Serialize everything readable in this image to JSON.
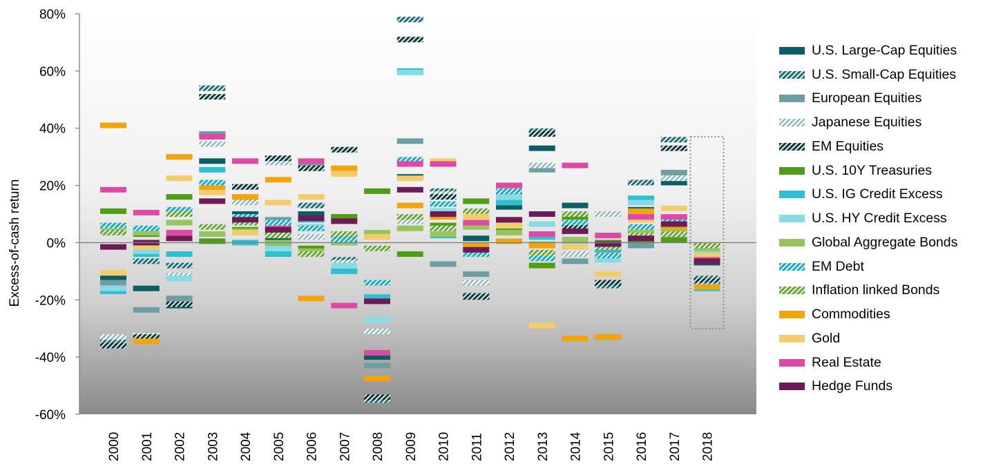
{
  "chart_data": {
    "type": "bar",
    "subtype": "floating-range-markers",
    "ylabel": "Excess-of-cash return",
    "xlabel": "",
    "ylim": [
      -60,
      80
    ],
    "yticks": [
      -60,
      -40,
      -20,
      0,
      20,
      40,
      60,
      80
    ],
    "ytick_labels": [
      "-60%",
      "-40%",
      "-20%",
      "0%",
      "20%",
      "40%",
      "60%",
      "80%"
    ],
    "categories": [
      "2000",
      "2001",
      "2002",
      "2003",
      "2004",
      "2005",
      "2006",
      "2007",
      "2008",
      "2009",
      "2010",
      "2011",
      "2012",
      "2013",
      "2014",
      "2015",
      "2016",
      "2017",
      "2018"
    ],
    "legend_position": "right",
    "highlight": {
      "category": "2018",
      "range": [
        -30,
        37
      ],
      "style": "dotted-box"
    },
    "series": [
      {
        "name": "U.S. Large-Cap Equities",
        "color": "#0b5e63",
        "pattern": "solid",
        "values": [
          -12.5,
          -16,
          -22,
          28.5,
          10,
          1,
          10,
          2.5,
          -40,
          23,
          11,
          1.5,
          12.5,
          33,
          13,
          -1,
          11.5,
          21,
          -7
        ]
      },
      {
        "name": "U.S. Small-Cap Equities",
        "color": "#1f7079",
        "pattern": "hatch",
        "values": [
          -35,
          -6.5,
          -8,
          54,
          15,
          3,
          13,
          -6,
          -55,
          78,
          18,
          -18.5,
          16,
          39,
          4,
          -15,
          21,
          36,
          -12.5
        ]
      },
      {
        "name": "European Equities",
        "color": "#6d9ea3",
        "pattern": "solid",
        "values": [
          -14,
          -23.5,
          -19.5,
          38,
          19.5,
          8,
          27.5,
          9,
          -43,
          35.5,
          -7.5,
          -11,
          16,
          25.5,
          -6.5,
          -2.5,
          -1,
          24.5,
          -14.5
        ]
      },
      {
        "name": "Japanese Equities",
        "color": "#8fb8bc",
        "pattern": "hatch-light",
        "values": [
          -33,
          -32.5,
          -11.5,
          34.5,
          14,
          28,
          2,
          -7,
          -31,
          7.5,
          17,
          -14,
          15,
          27,
          -4,
          10,
          8.5,
          22.5,
          -14
        ]
      },
      {
        "name": "EM Equities",
        "color": "#12393c",
        "pattern": "hatch",
        "values": [
          -36,
          -33,
          -21.5,
          51,
          19.5,
          29.5,
          26,
          32.5,
          -54,
          71,
          16,
          -19,
          17,
          38,
          5.5,
          -14,
          9,
          33,
          -13.5
        ]
      },
      {
        "name": "U.S. 10Y Treasuries",
        "color": "#4f9c16",
        "pattern": "solid",
        "values": [
          11,
          3,
          16,
          0.5,
          4.5,
          -1.5,
          -2,
          9,
          18,
          -4,
          6,
          14.5,
          4,
          -8,
          9,
          0,
          1,
          1,
          -1.5
        ]
      },
      {
        "name": "U.S. IG Credit Excess",
        "color": "#2fbfd0",
        "pattern": "solid",
        "values": [
          -17,
          -4,
          -4,
          25.5,
          0,
          -4,
          8,
          -10,
          -19,
          60,
          2.5,
          -1,
          14,
          2,
          1,
          -2,
          15.5,
          4.5,
          -16
        ]
      },
      {
        "name": "U.S. HY Credit Excess",
        "color": "#86dbe4",
        "pattern": "solid",
        "values": [
          -16,
          -3,
          -12.5,
          20.5,
          7,
          -2,
          5.5,
          -8,
          -27,
          59.5,
          11,
          -3,
          16,
          6.5,
          0.5,
          -6,
          14,
          6,
          -3
        ]
      },
      {
        "name": "Global Aggregate Bonds",
        "color": "#97c45e",
        "pattern": "solid",
        "values": [
          4,
          3.5,
          7,
          3,
          4,
          0,
          -3,
          0,
          3.5,
          5,
          3,
          5.5,
          3.5,
          -0.5,
          1,
          -1,
          4,
          4,
          -2
        ]
      },
      {
        "name": "EM Debt",
        "color": "#1aaec0",
        "pattern": "hatch",
        "values": [
          6,
          5,
          11.5,
          21,
          9,
          7,
          5,
          1,
          -14,
          29,
          13.5,
          -4,
          18,
          -5.5,
          7,
          -4.5,
          5.5,
          8,
          -15
        ]
      },
      {
        "name": "Inflation linked Bonds",
        "color": "#6aa83a",
        "pattern": "hatch",
        "values": [
          3.5,
          -1,
          10,
          5.5,
          7,
          2.5,
          -4,
          3,
          -2,
          9,
          5,
          11,
          7.5,
          -3.5,
          10,
          -1.5,
          2.5,
          3,
          -1
        ]
      },
      {
        "name": "Commodities",
        "color": "#f2a40c",
        "pattern": "solid",
        "values": [
          41,
          -34.5,
          30,
          19,
          16,
          22,
          -19.5,
          26,
          -47.5,
          13,
          9,
          -1,
          0.5,
          -1,
          -33.5,
          -33,
          11,
          5.5,
          -15.5
        ]
      },
      {
        "name": "Gold",
        "color": "#f4cc6c",
        "pattern": "solid",
        "values": [
          -10.5,
          -1.5,
          22.5,
          17.5,
          3.5,
          14,
          16,
          24,
          2,
          22.5,
          28.5,
          9,
          6,
          -29,
          -1.5,
          -11,
          8,
          12,
          -4.5
        ]
      },
      {
        "name": "Real Estate",
        "color": "#dd4aa3",
        "pattern": "solid",
        "values": [
          18.5,
          10.5,
          3.5,
          37,
          28.5,
          5,
          28.5,
          -22,
          -38.5,
          27.5,
          27.5,
          7,
          20,
          3,
          27,
          2.5,
          9,
          9,
          -6
        ]
      },
      {
        "name": "Hedge Funds",
        "color": "#6c1b57",
        "pattern": "solid",
        "values": [
          -1.5,
          0,
          1.5,
          14.5,
          8,
          4.5,
          8.5,
          7.5,
          -20.5,
          18.5,
          10,
          -2.5,
          8,
          10,
          4,
          -0.5,
          1.5,
          6.5,
          -6.5
        ]
      }
    ]
  }
}
